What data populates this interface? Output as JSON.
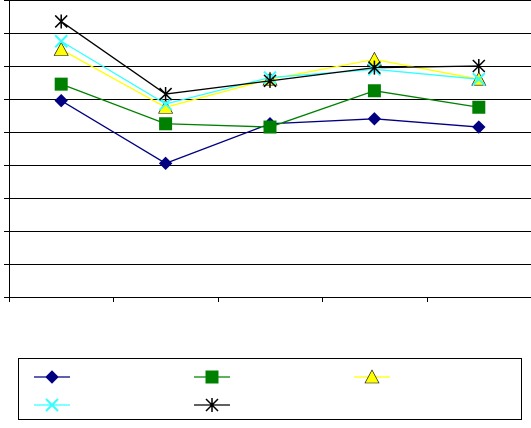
{
  "chart_data": {
    "type": "line",
    "title": "",
    "xlabel": "",
    "ylabel": "",
    "categories": [
      "",
      "",
      "",
      "",
      ""
    ],
    "ylim": [
      0,
      9
    ],
    "grid": true,
    "legend_placement": "bottom",
    "series": [
      {
        "values": [
          5.95,
          4.05,
          5.25,
          5.4,
          5.15
        ],
        "color": "#000080",
        "marker": "diamond"
      },
      {
        "values": [
          6.45,
          5.25,
          5.15,
          6.25,
          5.75
        ],
        "color": "#008000",
        "marker": "square"
      },
      {
        "values": [
          7.5,
          5.75,
          6.6,
          7.2,
          6.6
        ],
        "color": "#FFFF00",
        "marker": "triangle"
      },
      {
        "values": [
          7.75,
          5.85,
          6.65,
          6.9,
          6.6
        ],
        "color": "#33FFFF",
        "marker": "x"
      },
      {
        "values": [
          8.35,
          6.15,
          6.55,
          6.95,
          7.0
        ],
        "color": "#000000",
        "marker": "star"
      }
    ]
  }
}
